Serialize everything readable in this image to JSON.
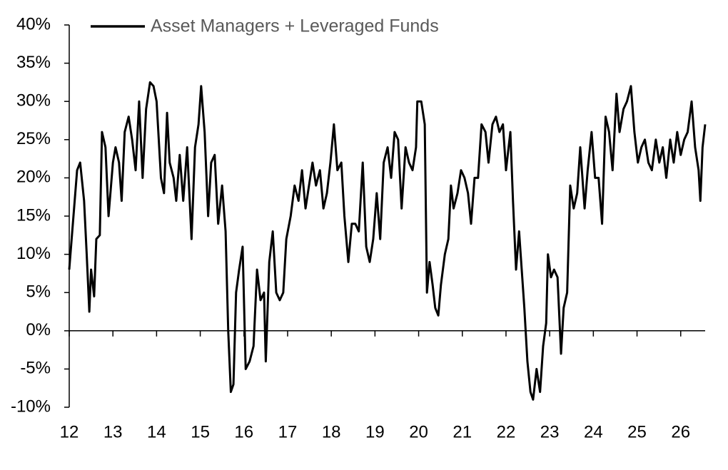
{
  "chart_data": {
    "type": "line",
    "xlim": [
      12,
      26.56
    ],
    "xticks": [
      12,
      13,
      14,
      15,
      16,
      17,
      18,
      19,
      20,
      21,
      22,
      23,
      24,
      25,
      26
    ],
    "ylim": [
      -10,
      40
    ],
    "yticks": [
      {
        "value": -10,
        "label": "-10%"
      },
      {
        "value": -5,
        "label": "-5%"
      },
      {
        "value": 0,
        "label": "0%"
      },
      {
        "value": 5,
        "label": "5%"
      },
      {
        "value": 10,
        "label": "10%"
      },
      {
        "value": 15,
        "label": "15%"
      },
      {
        "value": 20,
        "label": "20%"
      },
      {
        "value": 25,
        "label": "25%"
      },
      {
        "value": 30,
        "label": "30%"
      },
      {
        "value": 35,
        "label": "35%"
      },
      {
        "value": 40,
        "label": "40%"
      }
    ],
    "legend": "top-left",
    "x": [
      12,
      12.18,
      12.25,
      12.34,
      12.4,
      12.46,
      12.5,
      12.57,
      12.62,
      12.7,
      12.75,
      12.83,
      12.9,
      13.0,
      13.06,
      13.14,
      13.2,
      13.27,
      13.36,
      13.44,
      13.52,
      13.6,
      13.68,
      13.76,
      13.85,
      13.93,
      14.0,
      14.1,
      14.17,
      14.24,
      14.3,
      14.39,
      14.45,
      14.53,
      14.61,
      14.7,
      14.8,
      14.88,
      14.96,
      15.02,
      15.1,
      15.18,
      15.25,
      15.33,
      15.41,
      15.5,
      15.58,
      15.64,
      15.7,
      15.76,
      15.82,
      15.89,
      15.97,
      16.04,
      16.13,
      16.22,
      16.3,
      16.38,
      16.46,
      16.5,
      16.58,
      16.66,
      16.74,
      16.82,
      16.9,
      16.97,
      17.07,
      17.16,
      17.25,
      17.33,
      17.41,
      17.49,
      17.57,
      17.65,
      17.74,
      17.82,
      17.9,
      17.98,
      18.06,
      18.14,
      18.23,
      18.3,
      18.39,
      18.47,
      18.55,
      18.63,
      18.72,
      18.8,
      18.88,
      18.96,
      19.04,
      19.12,
      19.2,
      19.29,
      19.37,
      19.45,
      19.53,
      19.61,
      19.7,
      19.78,
      19.86,
      19.94,
      19.97,
      20.06,
      20.14,
      20.19,
      20.25,
      20.32,
      20.38,
      20.45,
      20.51,
      20.6,
      20.68,
      20.74,
      20.8,
      20.89,
      20.97,
      21.05,
      21.13,
      21.2,
      21.28,
      21.36,
      21.44,
      21.53,
      21.6,
      21.69,
      21.77,
      21.85,
      21.93,
      22.0,
      22.1,
      22.16,
      22.23,
      22.3,
      22.36,
      22.42,
      22.49,
      22.56,
      22.62,
      22.7,
      22.78,
      22.85,
      22.92,
      22.96,
      23.03,
      23.1,
      23.18,
      23.26,
      23.32,
      23.4,
      23.47,
      23.55,
      23.63,
      23.7,
      23.8,
      23.87,
      23.96,
      24.04,
      24.12,
      24.2,
      24.28,
      24.36,
      24.44,
      24.53,
      24.6,
      24.69,
      24.77,
      24.86,
      24.94,
      25.02,
      25.1,
      25.18,
      25.26,
      25.34,
      25.43,
      25.51,
      25.59,
      25.67,
      25.76,
      25.84,
      25.92,
      26.0,
      26.08,
      26.16,
      26.25,
      26.33,
      26.41,
      26.45,
      26.5,
      26.56
    ],
    "series": [
      {
        "name": "Asset Managers + Leveraged Funds",
        "color": "#000000",
        "values": [
          8,
          21,
          22,
          17,
          10,
          2.5,
          8,
          4.5,
          12,
          12.5,
          26,
          24,
          15,
          22,
          24,
          22,
          17,
          26,
          28,
          25,
          21,
          30,
          20,
          29,
          32.5,
          32,
          30,
          20,
          18,
          28.5,
          22,
          20,
          17,
          23,
          17,
          24,
          12,
          24,
          27,
          32,
          26,
          15,
          22,
          23,
          14,
          19,
          13,
          0,
          -8,
          -7,
          5,
          8,
          11,
          -5,
          -4,
          -2,
          8,
          4,
          5,
          -4,
          9,
          13,
          5,
          4,
          5,
          12,
          15,
          19,
          17,
          21,
          16,
          19,
          22,
          19,
          21,
          16,
          18,
          22,
          27,
          21,
          22,
          15,
          9,
          14,
          14,
          13,
          22,
          11,
          9,
          12,
          18,
          12,
          22,
          24,
          20,
          26,
          25,
          16,
          24,
          22,
          21,
          24,
          30,
          30,
          27,
          5,
          9,
          6,
          3,
          2,
          6,
          10,
          12,
          19,
          16,
          18,
          21,
          20,
          18,
          14,
          20,
          20,
          27,
          26,
          22,
          27,
          28,
          26,
          27,
          21,
          26,
          17,
          8,
          13,
          8,
          3,
          -4,
          -8,
          -9,
          -5,
          -8,
          -2,
          1,
          10,
          7,
          8,
          7,
          -3,
          3,
          5,
          19,
          16,
          18,
          24,
          16,
          21,
          26,
          20,
          20,
          14,
          28,
          26,
          21,
          31,
          26,
          29,
          30,
          32,
          26,
          22,
          24,
          25,
          22,
          21,
          25,
          22,
          24,
          20,
          25,
          22,
          26,
          23,
          25,
          26,
          30,
          24,
          21,
          17,
          24,
          27
        ]
      }
    ]
  }
}
